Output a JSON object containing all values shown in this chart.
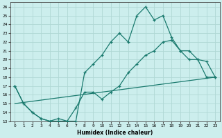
{
  "xlabel": "Humidex (Indice chaleur)",
  "bg_color": "#cceeed",
  "line_color": "#1a7a6e",
  "grid_color": "#b0d8d5",
  "xlim": [
    -0.5,
    23.5
  ],
  "ylim": [
    13,
    26.5
  ],
  "xticks": [
    0,
    1,
    2,
    3,
    4,
    5,
    6,
    7,
    8,
    9,
    10,
    11,
    12,
    13,
    14,
    15,
    16,
    17,
    18,
    19,
    20,
    21,
    22,
    23
  ],
  "yticks": [
    13,
    14,
    15,
    16,
    17,
    18,
    19,
    20,
    21,
    22,
    23,
    24,
    25,
    26
  ],
  "line1_x": [
    0,
    1,
    2,
    3,
    4,
    5,
    6,
    7,
    8,
    9,
    10,
    11,
    12,
    13,
    14,
    15,
    16,
    17,
    18,
    19,
    20,
    21,
    22,
    23
  ],
  "line1_y": [
    17,
    15,
    14,
    13.3,
    13,
    13,
    13,
    13,
    18.5,
    19.5,
    20.5,
    22,
    23,
    22,
    25,
    26,
    24.5,
    25,
    22.5,
    21,
    20,
    20,
    18,
    18
  ],
  "line2_x": [
    0,
    1,
    2,
    3,
    4,
    5,
    6,
    7,
    8,
    9,
    10,
    11,
    12,
    13,
    14,
    15,
    16,
    17,
    18,
    19,
    20,
    21,
    22,
    23
  ],
  "line2_y": [
    17,
    15,
    14,
    13.3,
    13,
    13.3,
    13,
    14.5,
    16.3,
    16.3,
    15.5,
    16.3,
    17,
    18.5,
    19.5,
    20.5,
    21,
    22,
    22.2,
    21,
    21,
    20,
    19.8,
    18
  ],
  "line3_x": [
    0,
    23
  ],
  "line3_y": [
    15,
    18
  ]
}
